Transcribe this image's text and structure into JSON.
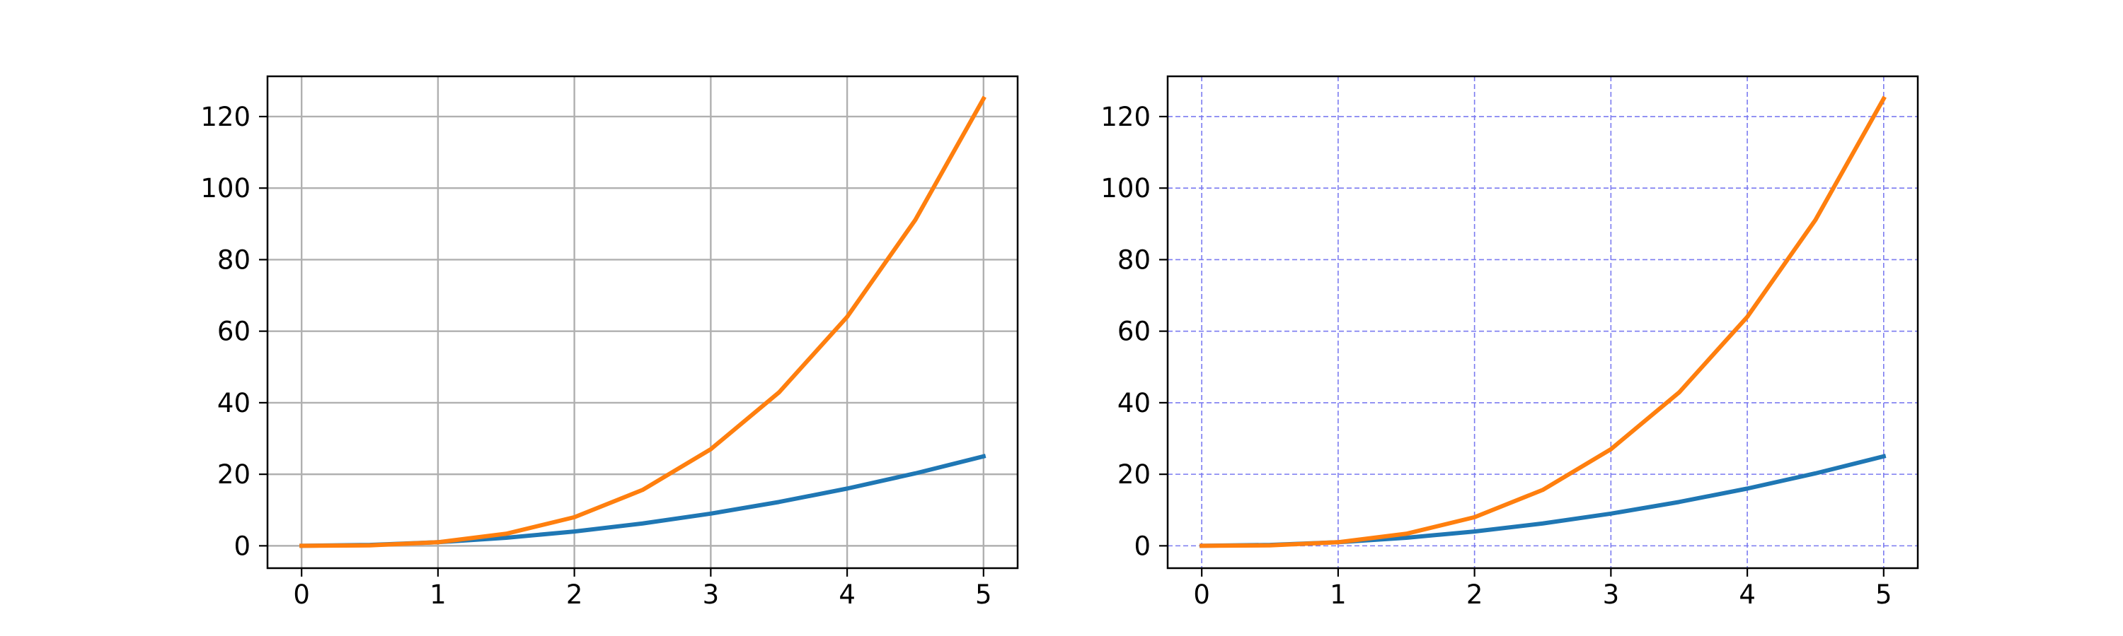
{
  "chart_data": [
    {
      "type": "line",
      "title": "",
      "xlabel": "",
      "ylabel": "",
      "xlim": [
        -0.25,
        5.25
      ],
      "ylim": [
        -6.25,
        131.25
      ],
      "xticks": [
        0,
        1,
        2,
        3,
        4,
        5
      ],
      "yticks": [
        0,
        20,
        40,
        60,
        80,
        100,
        120
      ],
      "grid": {
        "on": true,
        "style": "solid",
        "color": "#b0b0b0"
      },
      "x": [
        0,
        0.5,
        1,
        1.5,
        2,
        2.5,
        3,
        3.5,
        4,
        4.5,
        5
      ],
      "series": [
        {
          "color": "#1f77b4",
          "values": [
            0,
            0.25,
            1,
            2.25,
            4,
            6.25,
            9,
            12.25,
            16,
            20.25,
            25
          ]
        },
        {
          "color": "#ff7f0e",
          "values": [
            0,
            0.125,
            1,
            3.375,
            8,
            15.625,
            27,
            42.875,
            64,
            91.125,
            125
          ]
        }
      ]
    },
    {
      "type": "line",
      "title": "",
      "xlabel": "",
      "ylabel": "",
      "xlim": [
        -0.25,
        5.25
      ],
      "ylim": [
        -6.25,
        131.25
      ],
      "xticks": [
        0,
        1,
        2,
        3,
        4,
        5
      ],
      "yticks": [
        0,
        20,
        40,
        60,
        80,
        100,
        120
      ],
      "grid": {
        "on": true,
        "style": "dashed",
        "color": "#7b7bf0"
      },
      "x": [
        0,
        0.5,
        1,
        1.5,
        2,
        2.5,
        3,
        3.5,
        4,
        4.5,
        5
      ],
      "series": [
        {
          "color": "#1f77b4",
          "values": [
            0,
            0.25,
            1,
            2.25,
            4,
            6.25,
            9,
            12.25,
            16,
            20.25,
            25
          ]
        },
        {
          "color": "#ff7f0e",
          "values": [
            0,
            0.125,
            1,
            3.375,
            8,
            15.625,
            27,
            42.875,
            64,
            91.125,
            125
          ]
        }
      ]
    }
  ]
}
